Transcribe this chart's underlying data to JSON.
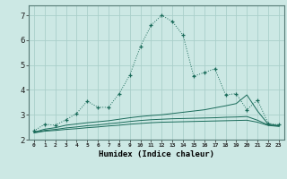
{
  "xlabel": "Humidex (Indice chaleur)",
  "xlim": [
    -0.5,
    23.5
  ],
  "ylim": [
    2.0,
    7.4
  ],
  "yticks": [
    2,
    3,
    4,
    5,
    6,
    7
  ],
  "bg_color": "#cce8e4",
  "line_color": "#1a6b5a",
  "grid_color": "#aacfca",
  "series": [
    {
      "x": [
        0,
        1,
        2,
        3,
        4,
        5,
        6,
        7,
        8,
        9,
        10,
        11,
        12,
        13,
        14,
        15,
        16,
        17,
        18,
        19,
        20,
        21,
        22,
        23
      ],
      "y": [
        2.35,
        2.62,
        2.58,
        2.8,
        3.05,
        3.55,
        3.3,
        3.3,
        3.85,
        4.6,
        5.75,
        6.6,
        7.0,
        6.75,
        6.2,
        4.55,
        4.7,
        4.85,
        3.8,
        3.85,
        3.2,
        3.6,
        2.65,
        2.6
      ],
      "marker": "+",
      "linestyle": "dotted"
    },
    {
      "x": [
        0,
        1,
        2,
        3,
        4,
        5,
        6,
        7,
        8,
        9,
        10,
        11,
        12,
        13,
        14,
        15,
        16,
        17,
        18,
        19,
        20,
        21,
        22,
        23
      ],
      "y": [
        2.3,
        2.42,
        2.48,
        2.58,
        2.63,
        2.68,
        2.72,
        2.76,
        2.82,
        2.88,
        2.93,
        2.97,
        3.0,
        3.05,
        3.1,
        3.15,
        3.2,
        3.28,
        3.36,
        3.45,
        3.8,
        3.15,
        2.62,
        2.57
      ],
      "marker": null,
      "linestyle": "solid"
    },
    {
      "x": [
        0,
        1,
        2,
        3,
        4,
        5,
        6,
        7,
        8,
        9,
        10,
        11,
        12,
        13,
        14,
        15,
        16,
        17,
        18,
        19,
        20,
        21,
        22,
        23
      ],
      "y": [
        2.28,
        2.37,
        2.41,
        2.47,
        2.51,
        2.56,
        2.59,
        2.64,
        2.68,
        2.73,
        2.77,
        2.8,
        2.82,
        2.84,
        2.85,
        2.86,
        2.87,
        2.88,
        2.9,
        2.91,
        2.93,
        2.78,
        2.59,
        2.55
      ],
      "marker": null,
      "linestyle": "solid"
    },
    {
      "x": [
        0,
        1,
        2,
        3,
        4,
        5,
        6,
        7,
        8,
        9,
        10,
        11,
        12,
        13,
        14,
        15,
        16,
        17,
        18,
        19,
        20,
        21,
        22,
        23
      ],
      "y": [
        2.27,
        2.34,
        2.37,
        2.41,
        2.44,
        2.48,
        2.51,
        2.55,
        2.58,
        2.62,
        2.65,
        2.68,
        2.7,
        2.71,
        2.72,
        2.73,
        2.74,
        2.75,
        2.76,
        2.77,
        2.78,
        2.7,
        2.57,
        2.53
      ],
      "marker": null,
      "linestyle": "solid"
    }
  ]
}
